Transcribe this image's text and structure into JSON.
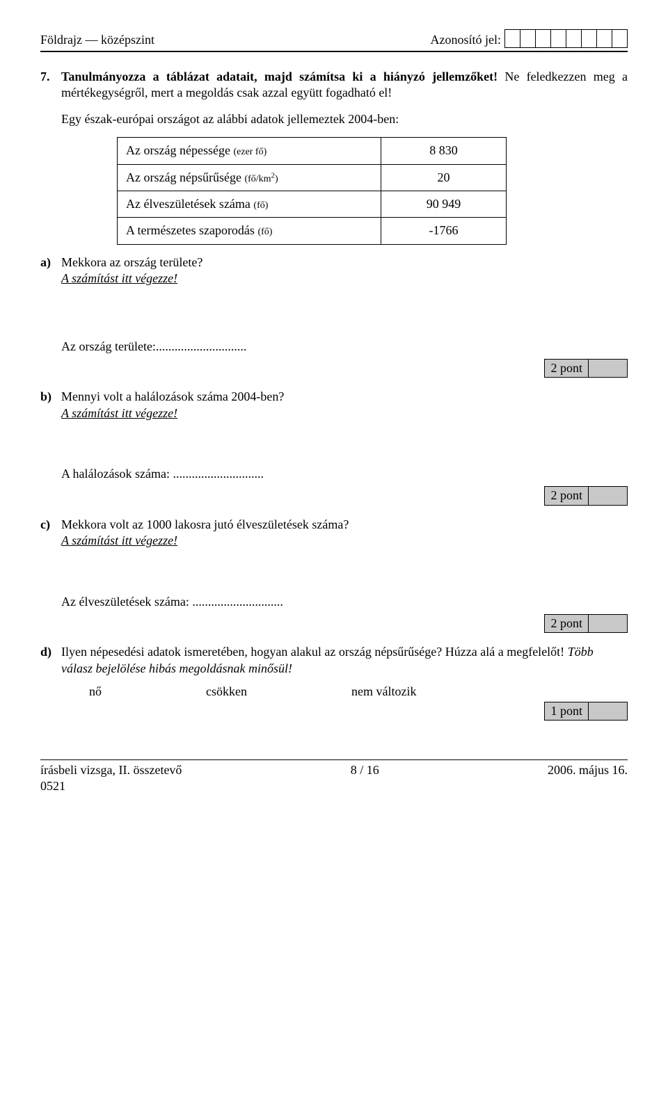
{
  "header": {
    "left": "Földrajz — középszint",
    "id_label": "Azonosító jel:",
    "id_box_count": 8
  },
  "task": {
    "number": "7.",
    "title_bold": "Tanulmányozza a táblázat adatait, majd számítsa ki a hiányzó jellemzőket!",
    "title_rest": " Ne feledkezzen meg a mértékegységről, mert a megoldás csak azzal együtt fogadható el!",
    "intro": "Egy észak-európai országot az alábbi adatok jellemeztek 2004-ben:"
  },
  "table": {
    "rows": [
      {
        "label_main": "Az ország népessége ",
        "label_small": "(ezer fő)",
        "value": "8 830"
      },
      {
        "label_main": "Az ország népsűrűsége ",
        "label_small": "(fő/km",
        "sup": "2",
        "label_small_end": ")",
        "value": "20"
      },
      {
        "label_main": "Az élveszületések száma ",
        "label_small": "(fő)",
        "value": "90 949"
      },
      {
        "label_main": "A természetes szaporodás ",
        "label_small": "(fő)",
        "value": "-1766"
      }
    ]
  },
  "qa": {
    "a": {
      "label": "a)",
      "q": "Mekkora az ország területe?",
      "hint": "A számítást itt végezze!",
      "ans": "Az ország területe:............................."
    },
    "b": {
      "label": "b)",
      "q": "Mennyi volt a halálozások száma 2004-ben?",
      "hint": "A számítást itt végezze!",
      "ans": "A halálozások száma: ............................."
    },
    "c": {
      "label": "c)",
      "q": "Mekkora volt az 1000 lakosra jutó élveszületések száma?",
      "hint": "A számítást itt végezze!",
      "ans": "Az élveszületések száma: ............................."
    },
    "d": {
      "label": "d)",
      "q_part1": "Ilyen népesedési adatok ismeretében, hogyan alakul az ország népsűrűsége? Húzza alá a megfelelőt! ",
      "q_italic": "Több válasz bejelölése hibás megoldásnak minősül!"
    }
  },
  "options": [
    "nő",
    "csökken",
    "nem változik"
  ],
  "scores": {
    "two": "2 pont",
    "one": "1 pont"
  },
  "footer": {
    "left_line1": "írásbeli vizsga, II. összetevő",
    "left_line2": "0521",
    "center": "8 / 16",
    "right": "2006. május 16."
  }
}
